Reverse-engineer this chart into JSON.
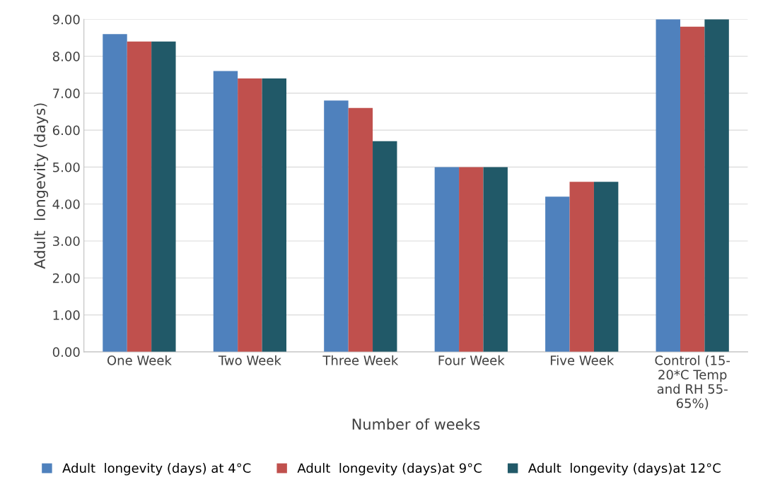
{
  "chart_data": {
    "type": "bar",
    "xlabel": "Number of weeks",
    "ylabel": "Adult  longevity (days)",
    "categories": [
      "One Week",
      "Two Week",
      "Three Week",
      "Four Week",
      "Five Week",
      "Control (15-\n20*C Temp\nand RH 55-\n65%)"
    ],
    "series": [
      {
        "name": "Adult  longevity (days) at 4°C",
        "color": "#4f81bd",
        "values": [
          8.6,
          7.6,
          6.8,
          5.0,
          4.2,
          9.0
        ]
      },
      {
        "name": "Adult  longevity (days)at 9°C",
        "color": "#c0504d",
        "values": [
          8.4,
          7.4,
          6.6,
          5.0,
          4.6,
          8.8
        ]
      },
      {
        "name": "Adult  longevity (days)at 12°C",
        "color": "#215968",
        "values": [
          8.4,
          7.4,
          5.7,
          5.0,
          4.6,
          9.0
        ]
      }
    ],
    "ylim": [
      0,
      9
    ],
    "yticks": [
      {
        "value": 0,
        "label": "0.00"
      },
      {
        "value": 1,
        "label": "1.00"
      },
      {
        "value": 2,
        "label": "2.00"
      },
      {
        "value": 3,
        "label": "3.00"
      },
      {
        "value": 4,
        "label": "4.00"
      },
      {
        "value": 5,
        "label": "5.00"
      },
      {
        "value": 6,
        "label": "6.00"
      },
      {
        "value": 7,
        "label": "7.00"
      },
      {
        "value": 8,
        "label": "8.00"
      },
      {
        "value": 9,
        "label": "9.00"
      }
    ],
    "grid": "y",
    "legend": "bottom"
  }
}
